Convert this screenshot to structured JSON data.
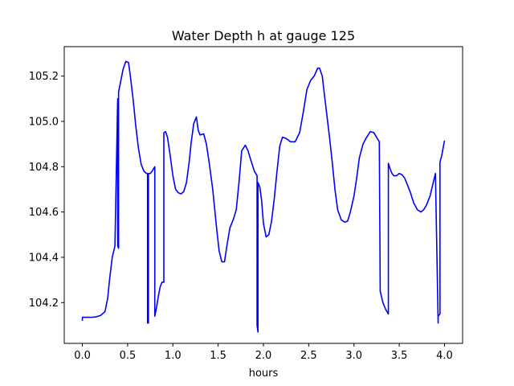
{
  "chart_data": {
    "type": "line",
    "title": "Water Depth h at gauge 125",
    "xlabel": "hours",
    "ylabel": "",
    "xlim": [
      -0.2,
      4.2
    ],
    "ylim": [
      104.02,
      105.33
    ],
    "xticks": [
      0.0,
      0.5,
      1.0,
      1.5,
      2.0,
      2.5,
      3.0,
      3.5,
      4.0
    ],
    "xtick_labels": [
      "0.0",
      "0.5",
      "1.0",
      "1.5",
      "2.0",
      "2.5",
      "3.0",
      "3.5",
      "4.0"
    ],
    "yticks": [
      104.2,
      104.4,
      104.6,
      104.8,
      105.0,
      105.2
    ],
    "ytick_labels": [
      "104.2",
      "104.4",
      "104.6",
      "104.8",
      "105.0",
      "105.2"
    ],
    "grid": false,
    "series": [
      {
        "color": "#0000ff",
        "x": [
          0.0,
          0.0,
          0.05,
          0.1,
          0.15,
          0.2,
          0.25,
          0.28,
          0.3,
          0.33,
          0.36,
          0.39,
          0.39,
          0.4,
          0.4,
          0.42,
          0.45,
          0.48,
          0.51,
          0.53,
          0.56,
          0.59,
          0.62,
          0.65,
          0.68,
          0.71,
          0.72,
          0.72,
          0.73,
          0.73,
          0.74,
          0.75,
          0.77,
          0.8,
          0.8,
          0.82,
          0.84,
          0.86,
          0.88,
          0.9,
          0.9,
          0.92,
          0.94,
          0.97,
          1.0,
          1.03,
          1.06,
          1.09,
          1.12,
          1.15,
          1.18,
          1.2,
          1.23,
          1.26,
          1.28,
          1.3,
          1.34,
          1.37,
          1.4,
          1.44,
          1.48,
          1.51,
          1.54,
          1.57,
          1.6,
          1.63,
          1.67,
          1.7,
          1.73,
          1.76,
          1.8,
          1.83,
          1.86,
          1.9,
          1.93,
          1.93,
          1.94,
          1.94,
          1.96,
          1.98,
          2.0,
          2.03,
          2.06,
          2.09,
          2.12,
          2.15,
          2.18,
          2.21,
          2.25,
          2.3,
          2.35,
          2.4,
          2.44,
          2.48,
          2.52,
          2.56,
          2.6,
          2.62,
          2.65,
          2.67,
          2.7,
          2.73,
          2.76,
          2.79,
          2.82,
          2.86,
          2.9,
          2.93,
          2.96,
          3.0,
          3.03,
          3.06,
          3.1,
          3.14,
          3.18,
          3.22,
          3.25,
          3.28,
          3.29,
          3.29,
          3.32,
          3.35,
          3.38,
          3.38,
          3.4,
          3.42,
          3.44,
          3.47,
          3.5,
          3.53,
          3.56,
          3.59,
          3.62,
          3.66,
          3.7,
          3.74,
          3.77,
          3.8,
          3.84,
          3.87,
          3.9,
          3.93,
          3.93,
          3.95,
          3.95,
          3.97,
          4.0
        ],
        "y": [
          104.12,
          104.135,
          104.135,
          104.135,
          104.137,
          104.143,
          104.16,
          104.22,
          104.3,
          104.4,
          104.45,
          105.1,
          104.45,
          104.44,
          105.13,
          105.17,
          105.23,
          105.265,
          105.26,
          105.2,
          105.1,
          104.98,
          104.88,
          104.81,
          104.78,
          104.77,
          104.77,
          104.11,
          104.11,
          104.77,
          104.77,
          104.77,
          104.78,
          104.8,
          104.14,
          104.18,
          104.23,
          104.27,
          104.29,
          104.29,
          104.95,
          104.955,
          104.93,
          104.85,
          104.76,
          104.7,
          104.685,
          104.68,
          104.69,
          104.73,
          104.82,
          104.9,
          104.99,
          105.02,
          104.96,
          104.94,
          104.945,
          104.9,
          104.82,
          104.7,
          104.54,
          104.43,
          104.38,
          104.38,
          104.46,
          104.53,
          104.57,
          104.61,
          104.73,
          104.87,
          104.895,
          104.87,
          104.83,
          104.78,
          104.76,
          104.1,
          104.07,
          104.73,
          104.71,
          104.65,
          104.55,
          104.49,
          104.5,
          104.56,
          104.66,
          104.78,
          104.89,
          104.93,
          104.925,
          104.91,
          104.91,
          104.95,
          105.04,
          105.14,
          105.18,
          105.2,
          105.235,
          105.235,
          105.2,
          105.13,
          105.03,
          104.93,
          104.82,
          104.7,
          104.61,
          104.565,
          104.555,
          104.56,
          104.6,
          104.67,
          104.75,
          104.84,
          104.9,
          104.93,
          104.955,
          104.95,
          104.93,
          104.91,
          104.25,
          104.25,
          104.2,
          104.17,
          104.15,
          104.815,
          104.79,
          104.77,
          104.76,
          104.76,
          104.77,
          104.765,
          104.75,
          104.72,
          104.69,
          104.64,
          104.61,
          104.6,
          104.61,
          104.63,
          104.67,
          104.72,
          104.77,
          104.11,
          104.14,
          104.15,
          104.82,
          104.85,
          104.915
        ]
      }
    ]
  }
}
